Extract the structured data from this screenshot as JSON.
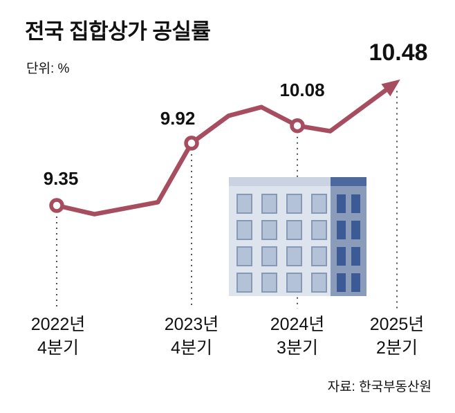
{
  "chart_data": {
    "type": "line",
    "title": "전국 집합상가 공실률",
    "unit_label": "단위: %",
    "categories": [
      "2022년 4분기",
      "2023년 4분기",
      "2024년 3분기",
      "2025년 2분기"
    ],
    "category_lines": [
      [
        "2022년",
        "4분기"
      ],
      [
        "2023년",
        "4분기"
      ],
      [
        "2024년",
        "3분기"
      ],
      [
        "2025년",
        "2분기"
      ]
    ],
    "values": [
      9.35,
      9.92,
      10.08,
      10.48
    ],
    "value_labels": [
      "9.35",
      "9.92",
      "10.08",
      "10.48"
    ],
    "line_detail": [
      [
        0,
        9.35
      ],
      [
        0.28,
        9.27
      ],
      [
        0.75,
        9.38
      ],
      [
        1,
        9.92
      ],
      [
        1.35,
        10.17
      ],
      [
        1.66,
        10.25
      ],
      [
        2,
        10.08
      ],
      [
        2.33,
        10.03
      ],
      [
        3,
        10.48
      ]
    ],
    "ylim": [
      9.2,
      10.6
    ],
    "grid": false,
    "legend": "none",
    "line_color": "#a64d5f",
    "dash_color": "#3a3a3a",
    "marker": {
      "fill": "#ffffff",
      "stroke": "#a64d5f"
    },
    "end_arrow": true,
    "source": "자료: 한국부동산원"
  },
  "building_illustration": {
    "facade_color": "#dee4ed",
    "side_color": "#8a9cba",
    "roof_color": "#c9d3e1",
    "roof_side_color": "#4d689d",
    "window_color": "#b3c2d6",
    "window_frame_color": "#8598b4",
    "side_window_color": "#3c5a96"
  }
}
